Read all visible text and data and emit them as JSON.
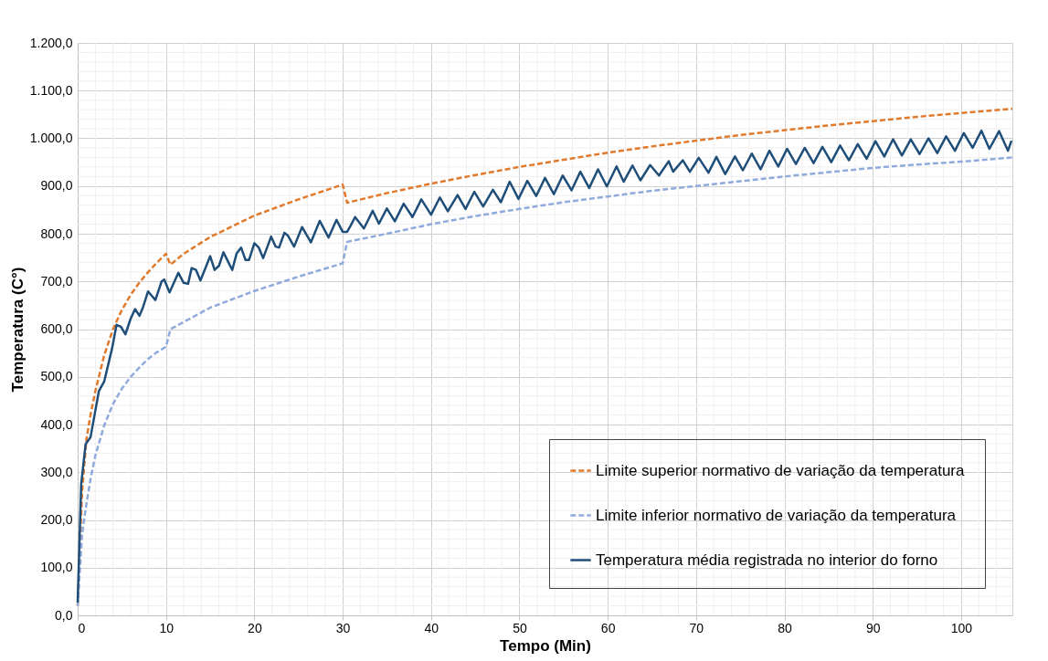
{
  "chart_data": {
    "type": "line",
    "xlabel": "Tempo (Min)",
    "ylabel": "Temperatura (C°)",
    "xlim": [
      0,
      105.8
    ],
    "ylim": [
      0,
      1200
    ],
    "xticks": [
      0,
      {
        "value": 2,
        "label": null
      },
      {
        "value": 4,
        "label": null
      },
      {
        "value": 6,
        "label": null
      },
      {
        "value": 8,
        "label": null
      },
      10,
      {
        "value": 12,
        "label": null
      },
      {
        "value": 14,
        "label": null
      },
      {
        "value": 16,
        "label": null
      },
      {
        "value": 18,
        "label": null
      },
      20,
      {
        "value": 22,
        "label": null
      },
      {
        "value": 24,
        "label": null
      },
      {
        "value": 26,
        "label": null
      },
      {
        "value": 28,
        "label": null
      },
      30,
      {
        "value": 32,
        "label": null
      },
      {
        "value": 34,
        "label": null
      },
      {
        "value": 36,
        "label": null
      },
      {
        "value": 38,
        "label": null
      },
      40,
      {
        "value": 42,
        "label": null
      },
      {
        "value": 44,
        "label": null
      },
      {
        "value": 46,
        "label": null
      },
      {
        "value": 48,
        "label": null
      },
      50,
      {
        "value": 52,
        "label": null
      },
      {
        "value": 54,
        "label": null
      },
      {
        "value": 56,
        "label": null
      },
      {
        "value": 58,
        "label": null
      },
      60,
      {
        "value": 62,
        "label": null
      },
      {
        "value": 64,
        "label": null
      },
      {
        "value": 66,
        "label": null
      },
      {
        "value": 68,
        "label": null
      },
      70,
      {
        "value": 72,
        "label": null
      },
      {
        "value": 74,
        "label": null
      },
      {
        "value": 76,
        "label": null
      },
      {
        "value": 78,
        "label": null
      },
      80,
      {
        "value": 82,
        "label": null
      },
      {
        "value": 84,
        "label": null
      },
      {
        "value": 86,
        "label": null
      },
      {
        "value": 88,
        "label": null
      },
      90,
      {
        "value": 92,
        "label": null
      },
      {
        "value": 94,
        "label": null
      },
      {
        "value": 96,
        "label": null
      },
      {
        "value": 98,
        "label": null
      },
      100,
      {
        "value": 102,
        "label": null
      },
      {
        "value": 104,
        "label": null
      }
    ],
    "yticks": [
      {
        "value": 0,
        "label": "0,0"
      },
      {
        "value": 20,
        "label": null
      },
      {
        "value": 40,
        "label": null
      },
      {
        "value": 60,
        "label": null
      },
      {
        "value": 80,
        "label": null
      },
      {
        "value": 100,
        "label": "100,0"
      },
      {
        "value": 120,
        "label": null
      },
      {
        "value": 140,
        "label": null
      },
      {
        "value": 160,
        "label": null
      },
      {
        "value": 180,
        "label": null
      },
      {
        "value": 200,
        "label": "200,0"
      },
      {
        "value": 220,
        "label": null
      },
      {
        "value": 240,
        "label": null
      },
      {
        "value": 260,
        "label": null
      },
      {
        "value": 280,
        "label": null
      },
      {
        "value": 300,
        "label": "300,0"
      },
      {
        "value": 320,
        "label": null
      },
      {
        "value": 340,
        "label": null
      },
      {
        "value": 360,
        "label": null
      },
      {
        "value": 380,
        "label": null
      },
      {
        "value": 400,
        "label": "400,0"
      },
      {
        "value": 420,
        "label": null
      },
      {
        "value": 440,
        "label": null
      },
      {
        "value": 460,
        "label": null
      },
      {
        "value": 480,
        "label": null
      },
      {
        "value": 500,
        "label": "500,0"
      },
      {
        "value": 520,
        "label": null
      },
      {
        "value": 540,
        "label": null
      },
      {
        "value": 560,
        "label": null
      },
      {
        "value": 580,
        "label": null
      },
      {
        "value": 600,
        "label": "600,0"
      },
      {
        "value": 620,
        "label": null
      },
      {
        "value": 640,
        "label": null
      },
      {
        "value": 660,
        "label": null
      },
      {
        "value": 680,
        "label": null
      },
      {
        "value": 700,
        "label": "700,0"
      },
      {
        "value": 720,
        "label": null
      },
      {
        "value": 740,
        "label": null
      },
      {
        "value": 760,
        "label": null
      },
      {
        "value": 780,
        "label": null
      },
      {
        "value": 800,
        "label": "800,0"
      },
      {
        "value": 820,
        "label": null
      },
      {
        "value": 840,
        "label": null
      },
      {
        "value": 860,
        "label": null
      },
      {
        "value": 880,
        "label": null
      },
      {
        "value": 900,
        "label": "900,0"
      },
      {
        "value": 920,
        "label": null
      },
      {
        "value": 940,
        "label": null
      },
      {
        "value": 960,
        "label": null
      },
      {
        "value": 980,
        "label": null
      },
      {
        "value": 1000,
        "label": "1.000,0"
      },
      {
        "value": 1020,
        "label": null
      },
      {
        "value": 1040,
        "label": null
      },
      {
        "value": 1060,
        "label": null
      },
      {
        "value": 1080,
        "label": null
      },
      {
        "value": 1100,
        "label": "1.100,0"
      },
      {
        "value": 1120,
        "label": null
      },
      {
        "value": 1140,
        "label": null
      },
      {
        "value": 1160,
        "label": null
      },
      {
        "value": 1180,
        "label": null
      },
      {
        "value": 1200,
        "label": "1.200,0"
      }
    ],
    "grid": true,
    "legend": "bottom right",
    "marker": "none",
    "series": [
      {
        "name": "Limite superior normativo de variação da temperatura",
        "color": "#e07b2e",
        "line_style": "dashed",
        "x": [
          0,
          0.5,
          1,
          1.5,
          2,
          3,
          4,
          5,
          6,
          7,
          8,
          9,
          10,
          10.5,
          12,
          15,
          20,
          25,
          30,
          30.5,
          35,
          40,
          45,
          50,
          55,
          60,
          65,
          70,
          75,
          80,
          85,
          90,
          95,
          100,
          105.8
        ],
        "values": [
          20,
          260,
          370,
          425,
          470,
          545,
          600,
          640,
          672,
          698,
          720,
          740,
          758,
          735,
          758,
          793,
          838,
          872,
          903,
          865,
          885,
          905,
          923,
          940,
          955,
          970,
          983,
          995,
          1007,
          1017,
          1027,
          1036,
          1045,
          1053,
          1062
        ]
      },
      {
        "name": "Limite inferior normativo de variação da temperatura",
        "color": "#8faadc",
        "line_style": "dashed",
        "x": [
          0,
          0.5,
          1,
          1.5,
          2,
          3,
          4,
          5,
          6,
          7,
          8,
          9,
          10,
          10.5,
          12,
          15,
          20,
          25,
          30,
          30.5,
          35,
          40,
          45,
          50,
          55,
          60,
          65,
          70,
          75,
          80,
          85,
          90,
          95,
          100,
          105.8
        ],
        "values": [
          20,
          170,
          235,
          290,
          335,
          398,
          443,
          475,
          500,
          520,
          538,
          552,
          563,
          600,
          615,
          645,
          680,
          710,
          738,
          783,
          800,
          820,
          837,
          852,
          866,
          878,
          890,
          900,
          910,
          920,
          929,
          938,
          945,
          951,
          960
        ]
      },
      {
        "name": "Temperatura média registrada no interior do forno",
        "color": "#1f4e79",
        "line_style": "solid",
        "x": [
          0,
          0.4,
          0.9,
          1.45,
          2.4,
          3.0,
          3.9,
          4.4,
          4.9,
          5.4,
          6.0,
          6.5,
          7.0,
          7.4,
          7.97,
          8.8,
          9.5,
          9.8,
          10.4,
          11.4,
          12.0,
          12.5,
          12.9,
          13.4,
          13.9,
          15.0,
          15.5,
          16.0,
          16.5,
          17.5,
          18.0,
          18.5,
          19.0,
          19.4,
          20.0,
          20.5,
          21.0,
          21.9,
          22.4,
          22.8,
          23.4,
          23.8,
          24.5,
          25.4,
          26.4,
          27.4,
          28.4,
          29.3,
          30.0,
          30.5,
          30.9,
          31.4,
          32.4,
          33.4,
          34.1,
          35.0,
          35.9,
          36.9,
          37.9,
          38.9,
          40.0,
          41.0,
          41.9,
          43.0,
          43.9,
          44.9,
          45.9,
          47.0,
          47.9,
          48.9,
          49.9,
          50.9,
          51.9,
          52.9,
          53.9,
          54.9,
          55.9,
          56.9,
          57.9,
          58.9,
          59.9,
          61.0,
          61.8,
          62.8,
          63.7,
          64.8,
          65.8,
          66.9,
          67.4,
          68.5,
          69.3,
          70.3,
          71.4,
          72.3,
          73.3,
          74.4,
          75.3,
          76.3,
          77.3,
          78.3,
          79.3,
          80.3,
          81.3,
          82.3,
          83.3,
          84.3,
          85.3,
          86.3,
          87.3,
          88.3,
          89.3,
          90.3,
          91.3,
          92.3,
          93.3,
          94.3,
          95.3,
          96.3,
          97.3,
          98.3,
          99.3,
          100.3,
          101.3,
          102.3,
          103.2,
          104.3,
          105.3,
          105.7
        ],
        "values": [
          27,
          275,
          359,
          373,
          470,
          490,
          560,
          609,
          605,
          589,
          622,
          642,
          628,
          646,
          679,
          661,
          700,
          704,
          677,
          718,
          697,
          695,
          728,
          724,
          702,
          753,
          724,
          733,
          761,
          724,
          759,
          771,
          745,
          745,
          780,
          771,
          749,
          794,
          773,
          771,
          802,
          796,
          773,
          814,
          782,
          827,
          792,
          829,
          804,
          804,
          817,
          835,
          811,
          848,
          821,
          853,
          826,
          863,
          835,
          872,
          840,
          876,
          847,
          881,
          852,
          888,
          857,
          892,
          866,
          909,
          873,
          911,
          879,
          917,
          883,
          922,
          891,
          930,
          896,
          935,
          899,
          941,
          909,
          943,
          912,
          944,
          922,
          952,
          930,
          954,
          930,
          959,
          928,
          961,
          925,
          962,
          933,
          968,
          935,
          974,
          941,
          978,
          946,
          980,
          948,
          982,
          950,
          985,
          954,
          988,
          957,
          994,
          962,
          998,
          964,
          998,
          967,
          1000,
          969,
          1004,
          974,
          1011,
          980,
          1016,
          978,
          1015,
          974,
          995
        ]
      }
    ]
  }
}
